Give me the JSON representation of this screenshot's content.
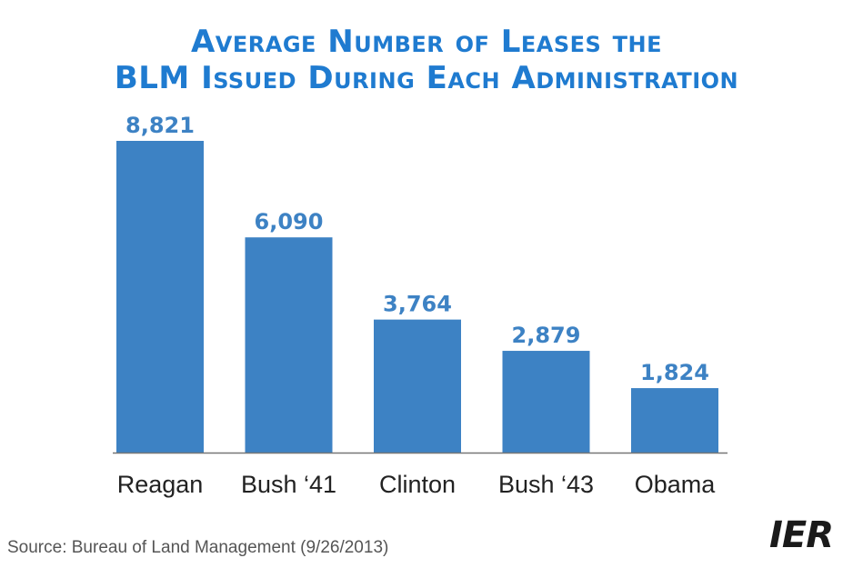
{
  "title_line1": "Average Number of Leases the",
  "title_line2": "BLM Issued During Each Administration",
  "source": "Source: Bureau of Land Management (9/26/2013)",
  "logo_text": "IER",
  "colors": {
    "bar": "#3d82c4",
    "title": "#1f7bd0",
    "value_label": "#3d82c4",
    "axis": "#777777",
    "category_label": "#222222"
  },
  "chart_data": {
    "type": "bar",
    "title": "Average Number of Leases the BLM Issued During Each Administration",
    "categories": [
      "Reagan",
      "Bush ‘41",
      "Clinton",
      "Bush ‘43",
      "Obama"
    ],
    "values": [
      8821,
      6090,
      3764,
      2879,
      1824
    ],
    "value_labels": [
      "8,821",
      "6,090",
      "3,764",
      "2,879",
      "1,824"
    ],
    "xlabel": "",
    "ylabel": "",
    "ylim": [
      0,
      8821
    ],
    "grid": false,
    "legend": "none"
  }
}
